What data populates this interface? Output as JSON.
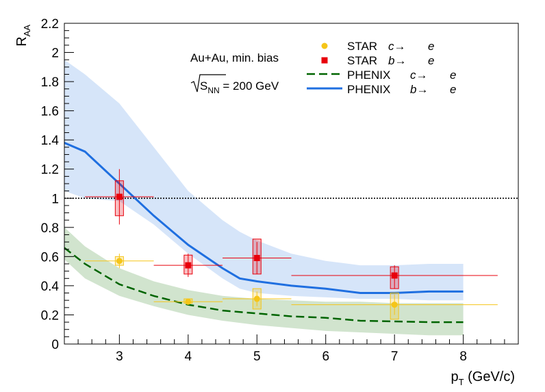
{
  "chart_data": {
    "type": "scatter",
    "xlabel": "p_T (GeV/c)",
    "ylabel": "R_AA",
    "xlim": [
      2.2,
      8.8
    ],
    "ylim": [
      0,
      2.2
    ],
    "x_ticks": [
      3,
      4,
      5,
      6,
      7,
      8
    ],
    "y_ticks": [
      0,
      0.2,
      0.4,
      0.6,
      0.8,
      1,
      1.2,
      1.4,
      1.6,
      1.8,
      2,
      2.2
    ],
    "x_tick_labels": [
      "3",
      "4",
      "5",
      "6",
      "7",
      "8"
    ],
    "y_tick_labels": [
      "0",
      "0.2",
      "0.4",
      "0.6",
      "0.8",
      "1",
      "1.2",
      "1.4",
      "1.6",
      "1.8",
      "2",
      "2.2"
    ],
    "grid": false,
    "reference_line": {
      "y": 1,
      "style": "dotted"
    },
    "annotations": [
      "Au+Au, min. bias",
      "√S_NN = 200 GeV"
    ],
    "legend_position": "top-right",
    "series": [
      {
        "name": "STAR c→ e",
        "kind": "points",
        "marker": "circle",
        "color": "#f5c518",
        "points": [
          {
            "x": 3,
            "y": 0.57,
            "xlo": 2.5,
            "xhi": 3.5,
            "stat_lo": 0.52,
            "stat_hi": 0.62,
            "sys_lo": 0.54,
            "sys_hi": 0.6
          },
          {
            "x": 4,
            "y": 0.29,
            "xlo": 3.5,
            "xhi": 4.5,
            "stat_lo": 0.27,
            "stat_hi": 0.31,
            "sys_lo": 0.28,
            "sys_hi": 0.31
          },
          {
            "x": 5,
            "y": 0.31,
            "xlo": 4.5,
            "xhi": 5.5,
            "stat_lo": 0.26,
            "stat_hi": 0.36,
            "sys_lo": 0.24,
            "sys_hi": 0.38
          },
          {
            "x": 7,
            "y": 0.27,
            "xlo": 5.5,
            "xhi": 8.5,
            "stat_lo": 0.2,
            "stat_hi": 0.34,
            "sys_lo": 0.17,
            "sys_hi": 0.35
          }
        ]
      },
      {
        "name": "STAR b→ e",
        "kind": "points",
        "marker": "square",
        "color": "#e8000b",
        "points": [
          {
            "x": 3,
            "y": 1.01,
            "xlo": 2.5,
            "xhi": 3.5,
            "stat_lo": 0.82,
            "stat_hi": 1.2,
            "sys_lo": 0.88,
            "sys_hi": 1.12
          },
          {
            "x": 4,
            "y": 0.54,
            "xlo": 3.5,
            "xhi": 4.5,
            "stat_lo": 0.46,
            "stat_hi": 0.62,
            "sys_lo": 0.48,
            "sys_hi": 0.61
          },
          {
            "x": 5,
            "y": 0.59,
            "xlo": 4.5,
            "xhi": 5.5,
            "stat_lo": 0.48,
            "stat_hi": 0.7,
            "sys_lo": 0.48,
            "sys_hi": 0.72
          },
          {
            "x": 7,
            "y": 0.47,
            "xlo": 5.5,
            "xhi": 8.5,
            "stat_lo": 0.38,
            "stat_hi": 0.54,
            "sys_lo": 0.38,
            "sys_hi": 0.53
          }
        ]
      },
      {
        "name": "PHENIX c→ e",
        "kind": "band",
        "line_style": "dashed",
        "line_color": "#006400",
        "band_color": "#c9dfc5",
        "x": [
          2.2,
          2.5,
          3.0,
          3.5,
          4.0,
          4.5,
          5.0,
          5.5,
          6.0,
          6.5,
          7.0,
          7.5,
          8.0
        ],
        "y": [
          0.66,
          0.55,
          0.41,
          0.33,
          0.27,
          0.23,
          0.21,
          0.19,
          0.18,
          0.16,
          0.155,
          0.15,
          0.15
        ],
        "y_lo": [
          0.58,
          0.45,
          0.33,
          0.26,
          0.2,
          0.16,
          0.13,
          0.11,
          0.09,
          0.08,
          0.07,
          0.06,
          0.06
        ],
        "y_hi": [
          0.8,
          0.67,
          0.52,
          0.43,
          0.37,
          0.33,
          0.31,
          0.3,
          0.29,
          0.29,
          0.28,
          0.28,
          0.28
        ]
      },
      {
        "name": "PHENIX b→ e",
        "kind": "band",
        "line_style": "solid",
        "line_color": "#1f6fe0",
        "band_color": "#cfe0f8",
        "x": [
          2.2,
          2.5,
          3.0,
          3.5,
          4.0,
          4.5,
          4.75,
          5.0,
          5.5,
          6.0,
          6.5,
          7.0,
          7.5,
          8.0
        ],
        "y": [
          1.38,
          1.32,
          1.1,
          0.88,
          0.68,
          0.52,
          0.45,
          0.43,
          0.4,
          0.38,
          0.35,
          0.35,
          0.36,
          0.36
        ],
        "y_lo": [
          1.05,
          1.0,
          0.98,
          0.82,
          0.62,
          0.45,
          0.38,
          0.35,
          0.33,
          0.32,
          0.31,
          0.31,
          0.3,
          0.3
        ],
        "y_hi": [
          1.95,
          1.85,
          1.65,
          1.35,
          1.05,
          0.85,
          0.77,
          0.71,
          0.62,
          0.57,
          0.54,
          0.54,
          0.55,
          0.55
        ]
      }
    ],
    "legend": [
      {
        "series": "STAR c→ e",
        "label_a": "STAR",
        "label_b": "c→",
        "label_c": "e"
      },
      {
        "series": "STAR b→ e",
        "label_a": "STAR",
        "label_b": "b→",
        "label_c": "e"
      },
      {
        "series": "PHENIX c→ e",
        "label_a": "PHENIX",
        "label_b": "c→",
        "label_c": "e"
      },
      {
        "series": "PHENIX b→ e",
        "label_a": "PHENIX",
        "label_b": "b→",
        "label_c": "e"
      }
    ]
  }
}
